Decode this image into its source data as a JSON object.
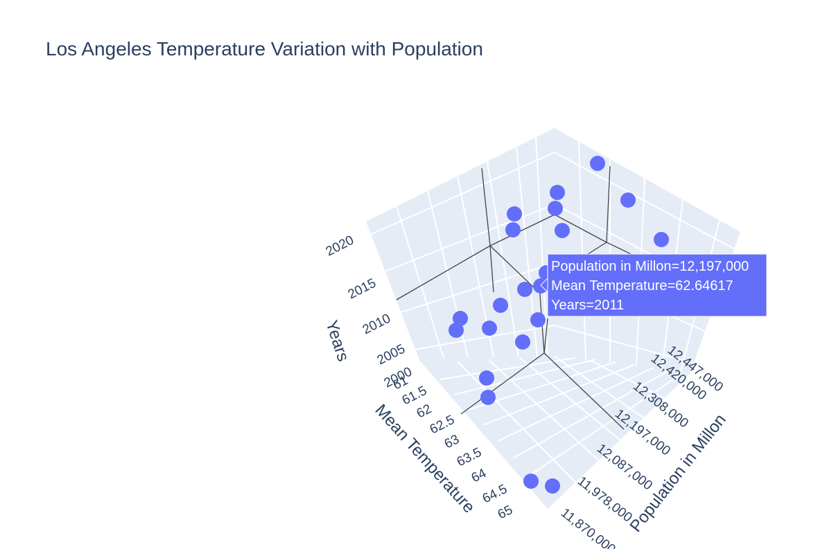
{
  "title": "Los Angeles Temperature Variation with Population",
  "chart_data": {
    "type": "scatter3d",
    "title": "Los Angeles Temperature Variation with Population",
    "marker_color": "#636efa",
    "pane_color": "#e5ecf6",
    "grid": true,
    "axes": {
      "x": {
        "label": "Population in Millon",
        "ticks": [
          "11,870,000",
          "11,978,000",
          "12,087,000",
          "12,197,000",
          "12,308,000",
          "12,420,000",
          "12,447,000"
        ]
      },
      "y": {
        "label": "Mean Temperature",
        "ticks": [
          "61",
          "61.5",
          "62",
          "62.5",
          "63",
          "63.5",
          "64",
          "64.5",
          "65"
        ]
      },
      "z": {
        "label": "Years",
        "ticks": [
          "2000",
          "2005",
          "2010",
          "2015",
          "2020"
        ]
      }
    },
    "hover": {
      "lines": [
        "Population in Millon=12,197,000",
        "Mean Temperature=62.64617",
        "Years=2011"
      ]
    }
  }
}
